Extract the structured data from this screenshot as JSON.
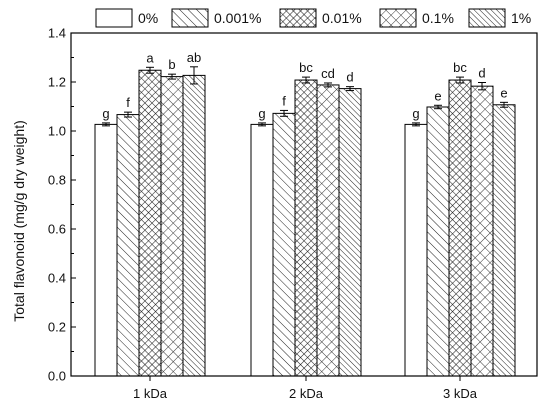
{
  "chart_data": {
    "type": "bar",
    "title": "",
    "xlabel": "",
    "ylabel": "Total flavonoid (mg/g dry weight)",
    "ylim": [
      0,
      1.4
    ],
    "yticks": [
      "0.0",
      "0.2",
      "0.4",
      "0.6",
      "0.8",
      "1.0",
      "1.2",
      "1.4"
    ],
    "grid": false,
    "legend_position": "top",
    "categories": [
      "1 kDa",
      "2 kDa",
      "3 kDa"
    ],
    "series": [
      {
        "name": "0%",
        "pattern": "plain",
        "values": [
          1.027,
          1.027,
          1.027
        ],
        "errors": [
          0.006,
          0.006,
          0.006
        ],
        "labels": [
          "g",
          "g",
          "g"
        ]
      },
      {
        "name": "0.001%",
        "pattern": "diagonal",
        "values": [
          1.067,
          1.072,
          1.098
        ],
        "errors": [
          0.01,
          0.012,
          0.007
        ],
        "labels": [
          "f",
          "f",
          "e"
        ]
      },
      {
        "name": "0.01%",
        "pattern": "dense-crosshatch",
        "values": [
          1.248,
          1.208,
          1.208
        ],
        "errors": [
          0.012,
          0.012,
          0.012
        ],
        "labels": [
          "a",
          "bc",
          "bc"
        ]
      },
      {
        "name": "0.1%",
        "pattern": "crosshatch",
        "values": [
          1.222,
          1.188,
          1.183
        ],
        "errors": [
          0.01,
          0.008,
          0.015
        ],
        "labels": [
          "b",
          "cd",
          "d"
        ]
      },
      {
        "name": "1%",
        "pattern": "diagonal-dense",
        "values": [
          1.227,
          1.173,
          1.107
        ],
        "errors": [
          0.035,
          0.008,
          0.01
        ],
        "labels": [
          "ab",
          "d",
          "e"
        ]
      }
    ]
  }
}
